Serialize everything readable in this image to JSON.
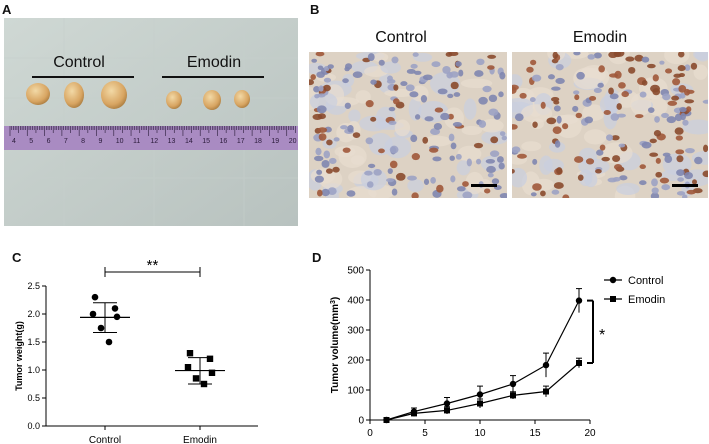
{
  "panels": {
    "a": {
      "letter": "A",
      "group_labels": [
        "Control",
        "Emodin"
      ],
      "ruler_numbers": [
        "4",
        "5",
        "6",
        "7",
        "8",
        "9",
        "10",
        "11",
        "12",
        "13",
        "14",
        "15",
        "16",
        "17",
        "18",
        "19",
        "20"
      ]
    },
    "b": {
      "letter": "B",
      "group_labels": [
        "Control",
        "Emodin"
      ]
    },
    "c": {
      "letter": "C"
    },
    "d": {
      "letter": "D"
    }
  },
  "colors": {
    "ruler": "#a98bc2",
    "tumor": "#d8a562",
    "stain_bg": "#d9cdbd",
    "nuclei": "#9b5a3a"
  },
  "chart_data": [
    {
      "type": "scatter",
      "panel": "C",
      "title": "",
      "xlabel": "",
      "ylabel": "Tumor weight(g)",
      "categories": [
        "Control",
        "Emodin"
      ],
      "ylim": [
        0,
        2.5
      ],
      "yticks": [
        "0.0",
        "0.5",
        "1.0",
        "1.5",
        "2.0",
        "2.5"
      ],
      "series": [
        {
          "category": "Control",
          "marker": "circle",
          "points": [
            2.3,
            2.1,
            2.0,
            1.95,
            1.75,
            1.5
          ],
          "mean": 1.94,
          "sd_upper": 2.2,
          "sd_lower": 1.67
        },
        {
          "category": "Emodin",
          "marker": "square",
          "points": [
            1.3,
            1.2,
            1.05,
            0.95,
            0.85,
            0.75
          ],
          "mean": 0.99,
          "sd_upper": 1.22,
          "sd_lower": 0.75
        }
      ],
      "significance": "**"
    },
    {
      "type": "line",
      "panel": "D",
      "title": "",
      "xlabel": "",
      "ylabel": "Tumor volume(mm",
      "ylabel_sup": "3",
      "ylabel_close": ")",
      "xlim": [
        0,
        20
      ],
      "ylim": [
        0,
        500
      ],
      "xticks": [
        "0",
        "5",
        "10",
        "15",
        "20"
      ],
      "yticks": [
        "0",
        "100",
        "200",
        "300",
        "400",
        "500"
      ],
      "legend_position": "top-right",
      "series": [
        {
          "name": "Control",
          "marker": "circle",
          "x": [
            1.5,
            4,
            7,
            10,
            13,
            16,
            19
          ],
          "y": [
            0,
            28,
            55,
            85,
            120,
            183,
            398
          ],
          "err": [
            4,
            12,
            20,
            28,
            28,
            40,
            40
          ]
        },
        {
          "name": "Emodin",
          "marker": "square",
          "x": [
            1.5,
            4,
            7,
            10,
            13,
            16,
            19
          ],
          "y": [
            0,
            22,
            32,
            55,
            82,
            95,
            190
          ],
          "err": [
            3,
            10,
            12,
            15,
            12,
            18,
            16
          ]
        }
      ],
      "significance": "*"
    }
  ]
}
